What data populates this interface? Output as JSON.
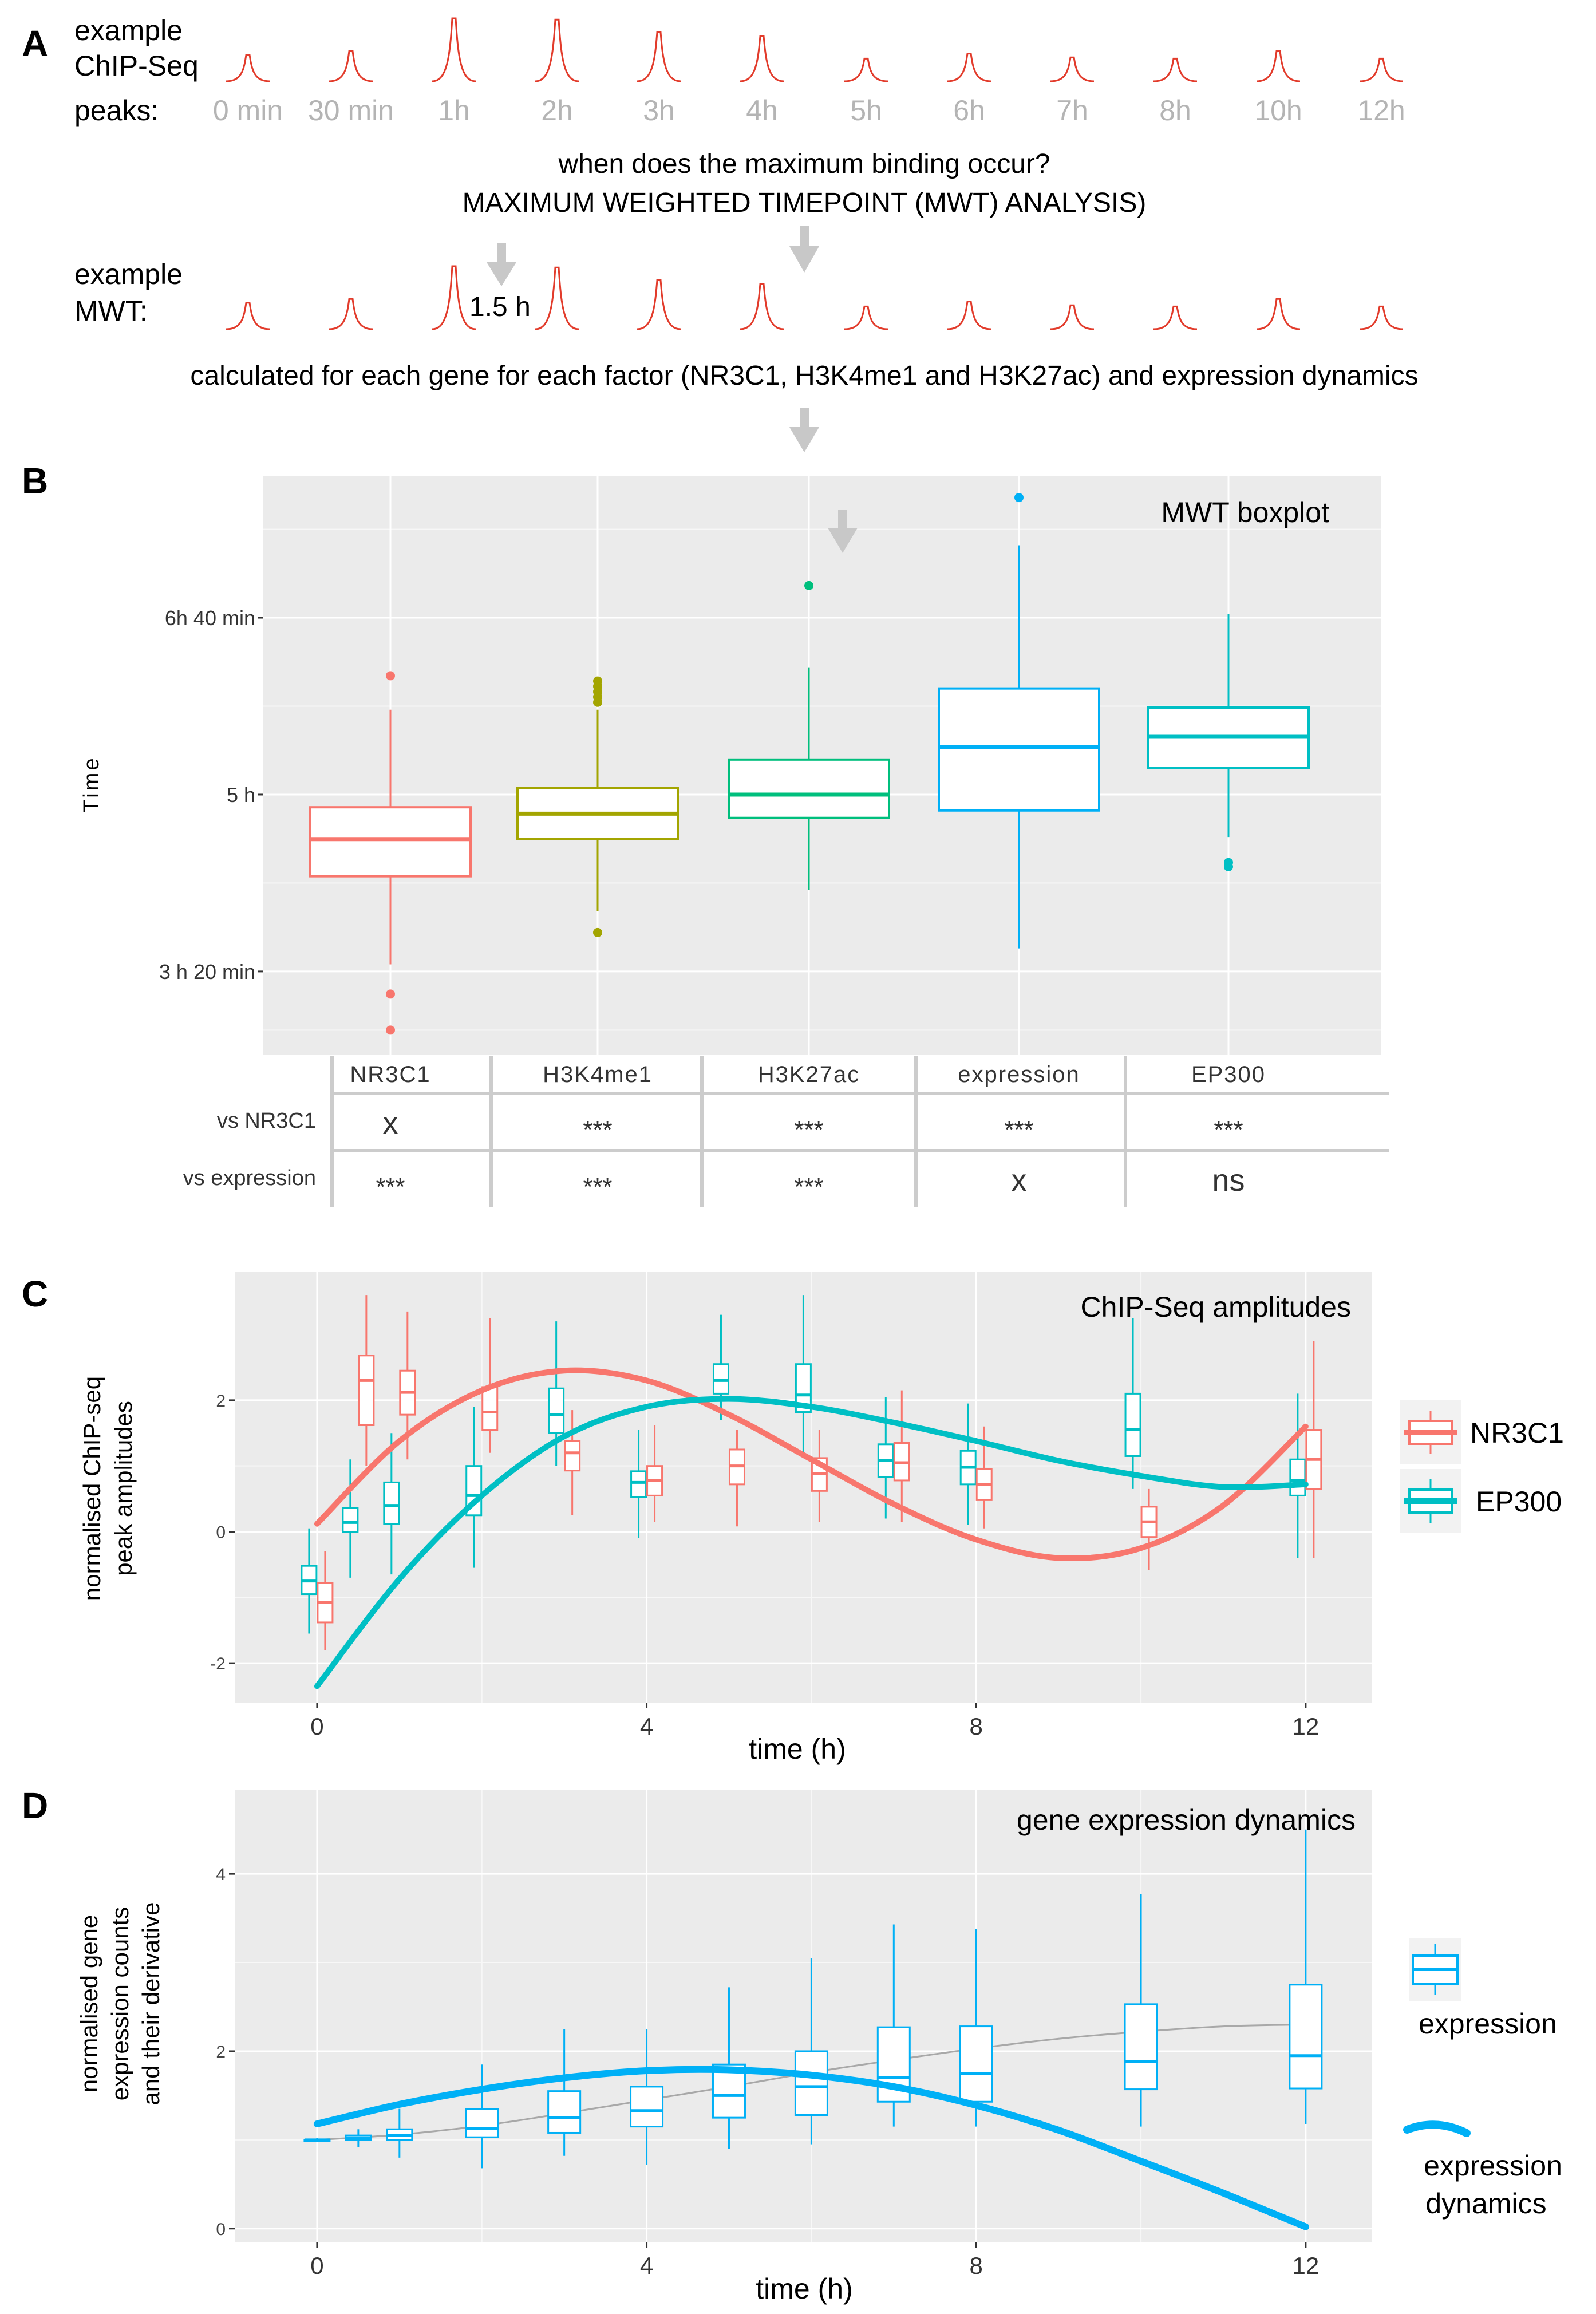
{
  "panels": {
    "a": {
      "letter": "A",
      "peaks_label_lines": [
        "example",
        "ChIP-Seq",
        "peaks:"
      ],
      "timepoints": [
        "0 min",
        "30 min",
        "1h",
        "2h",
        "3h",
        "4h",
        "5h",
        "6h",
        "7h",
        "8h",
        "10h",
        "12h"
      ],
      "peak_heights": [
        0.42,
        0.48,
        1.0,
        0.98,
        0.78,
        0.72,
        0.36,
        0.44,
        0.38,
        0.36,
        0.48,
        0.36
      ],
      "question": "when does the maximum binding occur?",
      "method": "MAXIMUM WEIGHTED TIMEPOINT (MWT) ANALYSIS)",
      "mwt_label_lines": [
        "example",
        "MWT:"
      ],
      "mwt_value": "1.5 h",
      "footer": "calculated for each gene for each factor (NR3C1, H3K4me1 and H3K27ac) and expression dynamics"
    },
    "b": {
      "letter": "B"
    },
    "c": {
      "letter": "C"
    },
    "d": {
      "letter": "D"
    }
  },
  "colors": {
    "peak": "#e23b2b",
    "nr3c1": "#f8766d",
    "h3k4me1": "#a3a500",
    "h3k27ac": "#00bf7d",
    "expression": "#00b0f6",
    "ep300": "#00bfc4",
    "panel_bg": "#ebebeb",
    "arrow": "#c8c8c8"
  },
  "chart_data": [
    {
      "type": "box",
      "title": "MWT boxplot",
      "xlabel": "",
      "ylabel": "Time",
      "y_unit": "hours",
      "ylim": [
        2.55,
        8.0
      ],
      "y_ticks": [
        {
          "v": 3.333,
          "label": "3 h 20 min"
        },
        {
          "v": 5.0,
          "label": "5 h"
        },
        {
          "v": 6.667,
          "label": "6h 40 min"
        }
      ],
      "categories": [
        "NR3C1",
        "H3K4me1",
        "H3K27ac",
        "expression",
        "EP300"
      ],
      "series": [
        {
          "name": "NR3C1",
          "min": 3.4,
          "q1": 4.23,
          "median": 4.58,
          "q3": 4.88,
          "max": 5.8,
          "outliers": [
            6.12,
            3.12,
            2.78
          ]
        },
        {
          "name": "H3K4me1",
          "min": 3.9,
          "q1": 4.58,
          "median": 4.82,
          "q3": 5.06,
          "max": 5.8,
          "outliers": [
            6.07,
            6.02,
            5.97,
            5.92,
            5.87,
            3.7
          ]
        },
        {
          "name": "H3K27ac",
          "min": 4.1,
          "q1": 4.78,
          "median": 5.0,
          "q3": 5.33,
          "max": 6.2,
          "outliers": [
            6.97
          ]
        },
        {
          "name": "expression",
          "min": 3.55,
          "q1": 4.85,
          "median": 5.45,
          "q3": 6.0,
          "max": 7.35,
          "outliers": [
            7.8
          ]
        },
        {
          "name": "EP300",
          "min": 4.6,
          "q1": 5.25,
          "median": 5.55,
          "q3": 5.82,
          "max": 6.7,
          "outliers": [
            4.36,
            4.32
          ]
        }
      ],
      "table": {
        "header": [
          "NR3C1",
          "H3K4me1",
          "H3K27ac",
          "expression",
          "EP300"
        ],
        "rows": [
          {
            "label": "vs NR3C1",
            "cells": [
              "x",
              "***",
              "***",
              "***",
              "***"
            ]
          },
          {
            "label": "vs expression",
            "cells": [
              "***",
              "***",
              "***",
              "x",
              "ns"
            ]
          }
        ]
      }
    },
    {
      "type": "box",
      "title": "ChIP-Seq amplitudes",
      "xlabel": "time (h)",
      "ylabel": [
        "normalised ChIP-seq",
        "peak amplitudes"
      ],
      "xlim": [
        -1,
        12.8
      ],
      "ylim": [
        -2.6,
        3.95
      ],
      "x_ticks": [
        0,
        4,
        8,
        12
      ],
      "y_ticks": [
        -2,
        0,
        2
      ],
      "legend": [
        "NR3C1",
        "EP300"
      ],
      "series": [
        {
          "name": "EP300",
          "boxes": [
            {
              "t": 0,
              "min": -1.55,
              "q1": -0.95,
              "median": -0.75,
              "q3": -0.52,
              "max": 0.05
            },
            {
              "t": 0.5,
              "min": -0.7,
              "q1": 0.0,
              "median": 0.14,
              "q3": 0.36,
              "max": 1.1
            },
            {
              "t": 1,
              "min": -0.65,
              "q1": 0.12,
              "median": 0.4,
              "q3": 0.75,
              "max": 1.5
            },
            {
              "t": 2,
              "min": -0.55,
              "q1": 0.25,
              "median": 0.55,
              "q3": 1.0,
              "max": 1.9
            },
            {
              "t": 3,
              "min": 1.0,
              "q1": 1.5,
              "median": 1.78,
              "q3": 2.18,
              "max": 3.2
            },
            {
              "t": 4,
              "min": -0.1,
              "q1": 0.53,
              "median": 0.75,
              "q3": 0.92,
              "max": 1.55
            },
            {
              "t": 5,
              "min": 1.7,
              "q1": 2.1,
              "median": 2.3,
              "q3": 2.55,
              "max": 3.3
            },
            {
              "t": 6,
              "min": 1.2,
              "q1": 1.82,
              "median": 2.08,
              "q3": 2.55,
              "max": 3.6
            },
            {
              "t": 7,
              "min": 0.2,
              "q1": 0.83,
              "median": 1.08,
              "q3": 1.33,
              "max": 2.05
            },
            {
              "t": 8,
              "min": 0.1,
              "q1": 0.72,
              "median": 0.98,
              "q3": 1.23,
              "max": 1.95
            },
            {
              "t": 10,
              "min": 0.65,
              "q1": 1.15,
              "median": 1.55,
              "q3": 2.1,
              "max": 3.25
            },
            {
              "t": 12,
              "min": -0.4,
              "q1": 0.55,
              "median": 0.78,
              "q3": 1.1,
              "max": 2.1
            }
          ]
        },
        {
          "name": "NR3C1",
          "boxes": [
            {
              "t": 0,
              "min": -1.8,
              "q1": -1.38,
              "median": -1.08,
              "q3": -0.78,
              "max": -0.3
            },
            {
              "t": 0.5,
              "min": 1.0,
              "q1": 1.62,
              "median": 2.3,
              "q3": 2.68,
              "max": 3.6
            },
            {
              "t": 1,
              "min": 1.1,
              "q1": 1.78,
              "median": 2.12,
              "q3": 2.45,
              "max": 3.35
            },
            {
              "t": 2,
              "min": 1.2,
              "q1": 1.55,
              "median": 1.82,
              "q3": 2.2,
              "max": 3.25
            },
            {
              "t": 3,
              "min": 0.25,
              "q1": 0.93,
              "median": 1.2,
              "q3": 1.38,
              "max": 1.85
            },
            {
              "t": 4,
              "min": 0.15,
              "q1": 0.55,
              "median": 0.78,
              "q3": 1.0,
              "max": 1.62
            },
            {
              "t": 5,
              "min": 0.08,
              "q1": 0.72,
              "median": 1.0,
              "q3": 1.25,
              "max": 1.55
            },
            {
              "t": 6,
              "min": 0.15,
              "q1": 0.62,
              "median": 0.88,
              "q3": 1.12,
              "max": 1.55
            },
            {
              "t": 7,
              "min": 0.15,
              "q1": 0.78,
              "median": 1.05,
              "q3": 1.35,
              "max": 2.15
            },
            {
              "t": 8,
              "min": 0.05,
              "q1": 0.48,
              "median": 0.72,
              "q3": 0.95,
              "max": 1.6
            },
            {
              "t": 10,
              "min": -0.58,
              "q1": -0.08,
              "median": 0.15,
              "q3": 0.38,
              "max": 0.65
            },
            {
              "t": 12,
              "min": -0.4,
              "q1": 0.65,
              "median": 1.1,
              "q3": 1.55,
              "max": 2.9
            }
          ]
        }
      ],
      "fits": [
        {
          "name": "NR3C1",
          "x": [
            0,
            1,
            2,
            3,
            4,
            5,
            6,
            7,
            8,
            9,
            10,
            11,
            12
          ],
          "y": [
            0.12,
            1.38,
            2.15,
            2.45,
            2.3,
            1.78,
            1.1,
            0.42,
            -0.12,
            -0.4,
            -0.25,
            0.4,
            1.6
          ]
        },
        {
          "name": "EP300",
          "x": [
            0,
            1,
            2,
            3,
            4,
            5,
            6,
            7,
            8,
            9,
            10,
            11,
            12
          ],
          "y": [
            -2.35,
            -0.72,
            0.55,
            1.45,
            1.9,
            2.02,
            1.9,
            1.66,
            1.38,
            1.08,
            0.85,
            0.68,
            0.72
          ]
        }
      ]
    },
    {
      "type": "box",
      "title": "gene expression dynamics",
      "xlabel": "time (h)",
      "ylabel": [
        "normalised gene",
        "expression counts",
        "and their derivative"
      ],
      "xlim": [
        -1,
        12.8
      ],
      "ylim": [
        -0.15,
        4.95
      ],
      "x_ticks": [
        0,
        4,
        8,
        12
      ],
      "y_ticks": [
        0,
        2,
        4
      ],
      "legend": [
        "expression",
        "expression dynamics"
      ],
      "series": [
        {
          "name": "expression",
          "boxes": [
            {
              "t": 0,
              "min": 0.98,
              "q1": 1.0,
              "median": 1.0,
              "q3": 1.0,
              "max": 1.02
            },
            {
              "t": 0.5,
              "min": 0.92,
              "q1": 1.0,
              "median": 1.02,
              "q3": 1.05,
              "max": 1.12
            },
            {
              "t": 1,
              "min": 0.8,
              "q1": 1.0,
              "median": 1.05,
              "q3": 1.12,
              "max": 1.35
            },
            {
              "t": 2,
              "min": 0.68,
              "q1": 1.03,
              "median": 1.13,
              "q3": 1.35,
              "max": 1.85
            },
            {
              "t": 3,
              "min": 0.82,
              "q1": 1.08,
              "median": 1.25,
              "q3": 1.55,
              "max": 2.25
            },
            {
              "t": 4,
              "min": 0.72,
              "q1": 1.15,
              "median": 1.33,
              "q3": 1.6,
              "max": 2.25
            },
            {
              "t": 5,
              "min": 0.9,
              "q1": 1.25,
              "median": 1.5,
              "q3": 1.85,
              "max": 2.72
            },
            {
              "t": 6,
              "min": 0.95,
              "q1": 1.28,
              "median": 1.6,
              "q3": 2.0,
              "max": 3.05
            },
            {
              "t": 7,
              "min": 1.15,
              "q1": 1.43,
              "median": 1.7,
              "q3": 2.27,
              "max": 3.43
            },
            {
              "t": 8,
              "min": 1.15,
              "q1": 1.43,
              "median": 1.75,
              "q3": 2.28,
              "max": 3.38
            },
            {
              "t": 10,
              "min": 1.15,
              "q1": 1.57,
              "median": 1.88,
              "q3": 2.53,
              "max": 3.77
            },
            {
              "t": 12,
              "min": 1.18,
              "q1": 1.58,
              "median": 1.95,
              "q3": 2.75,
              "max": 4.5
            }
          ]
        }
      ],
      "fits": [
        {
          "name": "expression dynamics",
          "x": [
            0,
            1,
            2,
            3,
            4,
            5,
            6,
            7,
            8,
            9,
            10,
            11,
            12
          ],
          "y": [
            1.18,
            1.4,
            1.57,
            1.7,
            1.78,
            1.79,
            1.73,
            1.6,
            1.39,
            1.11,
            0.76,
            0.4,
            0.02
          ]
        },
        {
          "name": "mean trend",
          "x": [
            0,
            1,
            2,
            3,
            4,
            5,
            6,
            7,
            8,
            9,
            10,
            11,
            12
          ],
          "y": [
            1.0,
            1.06,
            1.16,
            1.3,
            1.45,
            1.6,
            1.76,
            1.9,
            2.03,
            2.14,
            2.22,
            2.28,
            2.3
          ]
        }
      ]
    }
  ]
}
